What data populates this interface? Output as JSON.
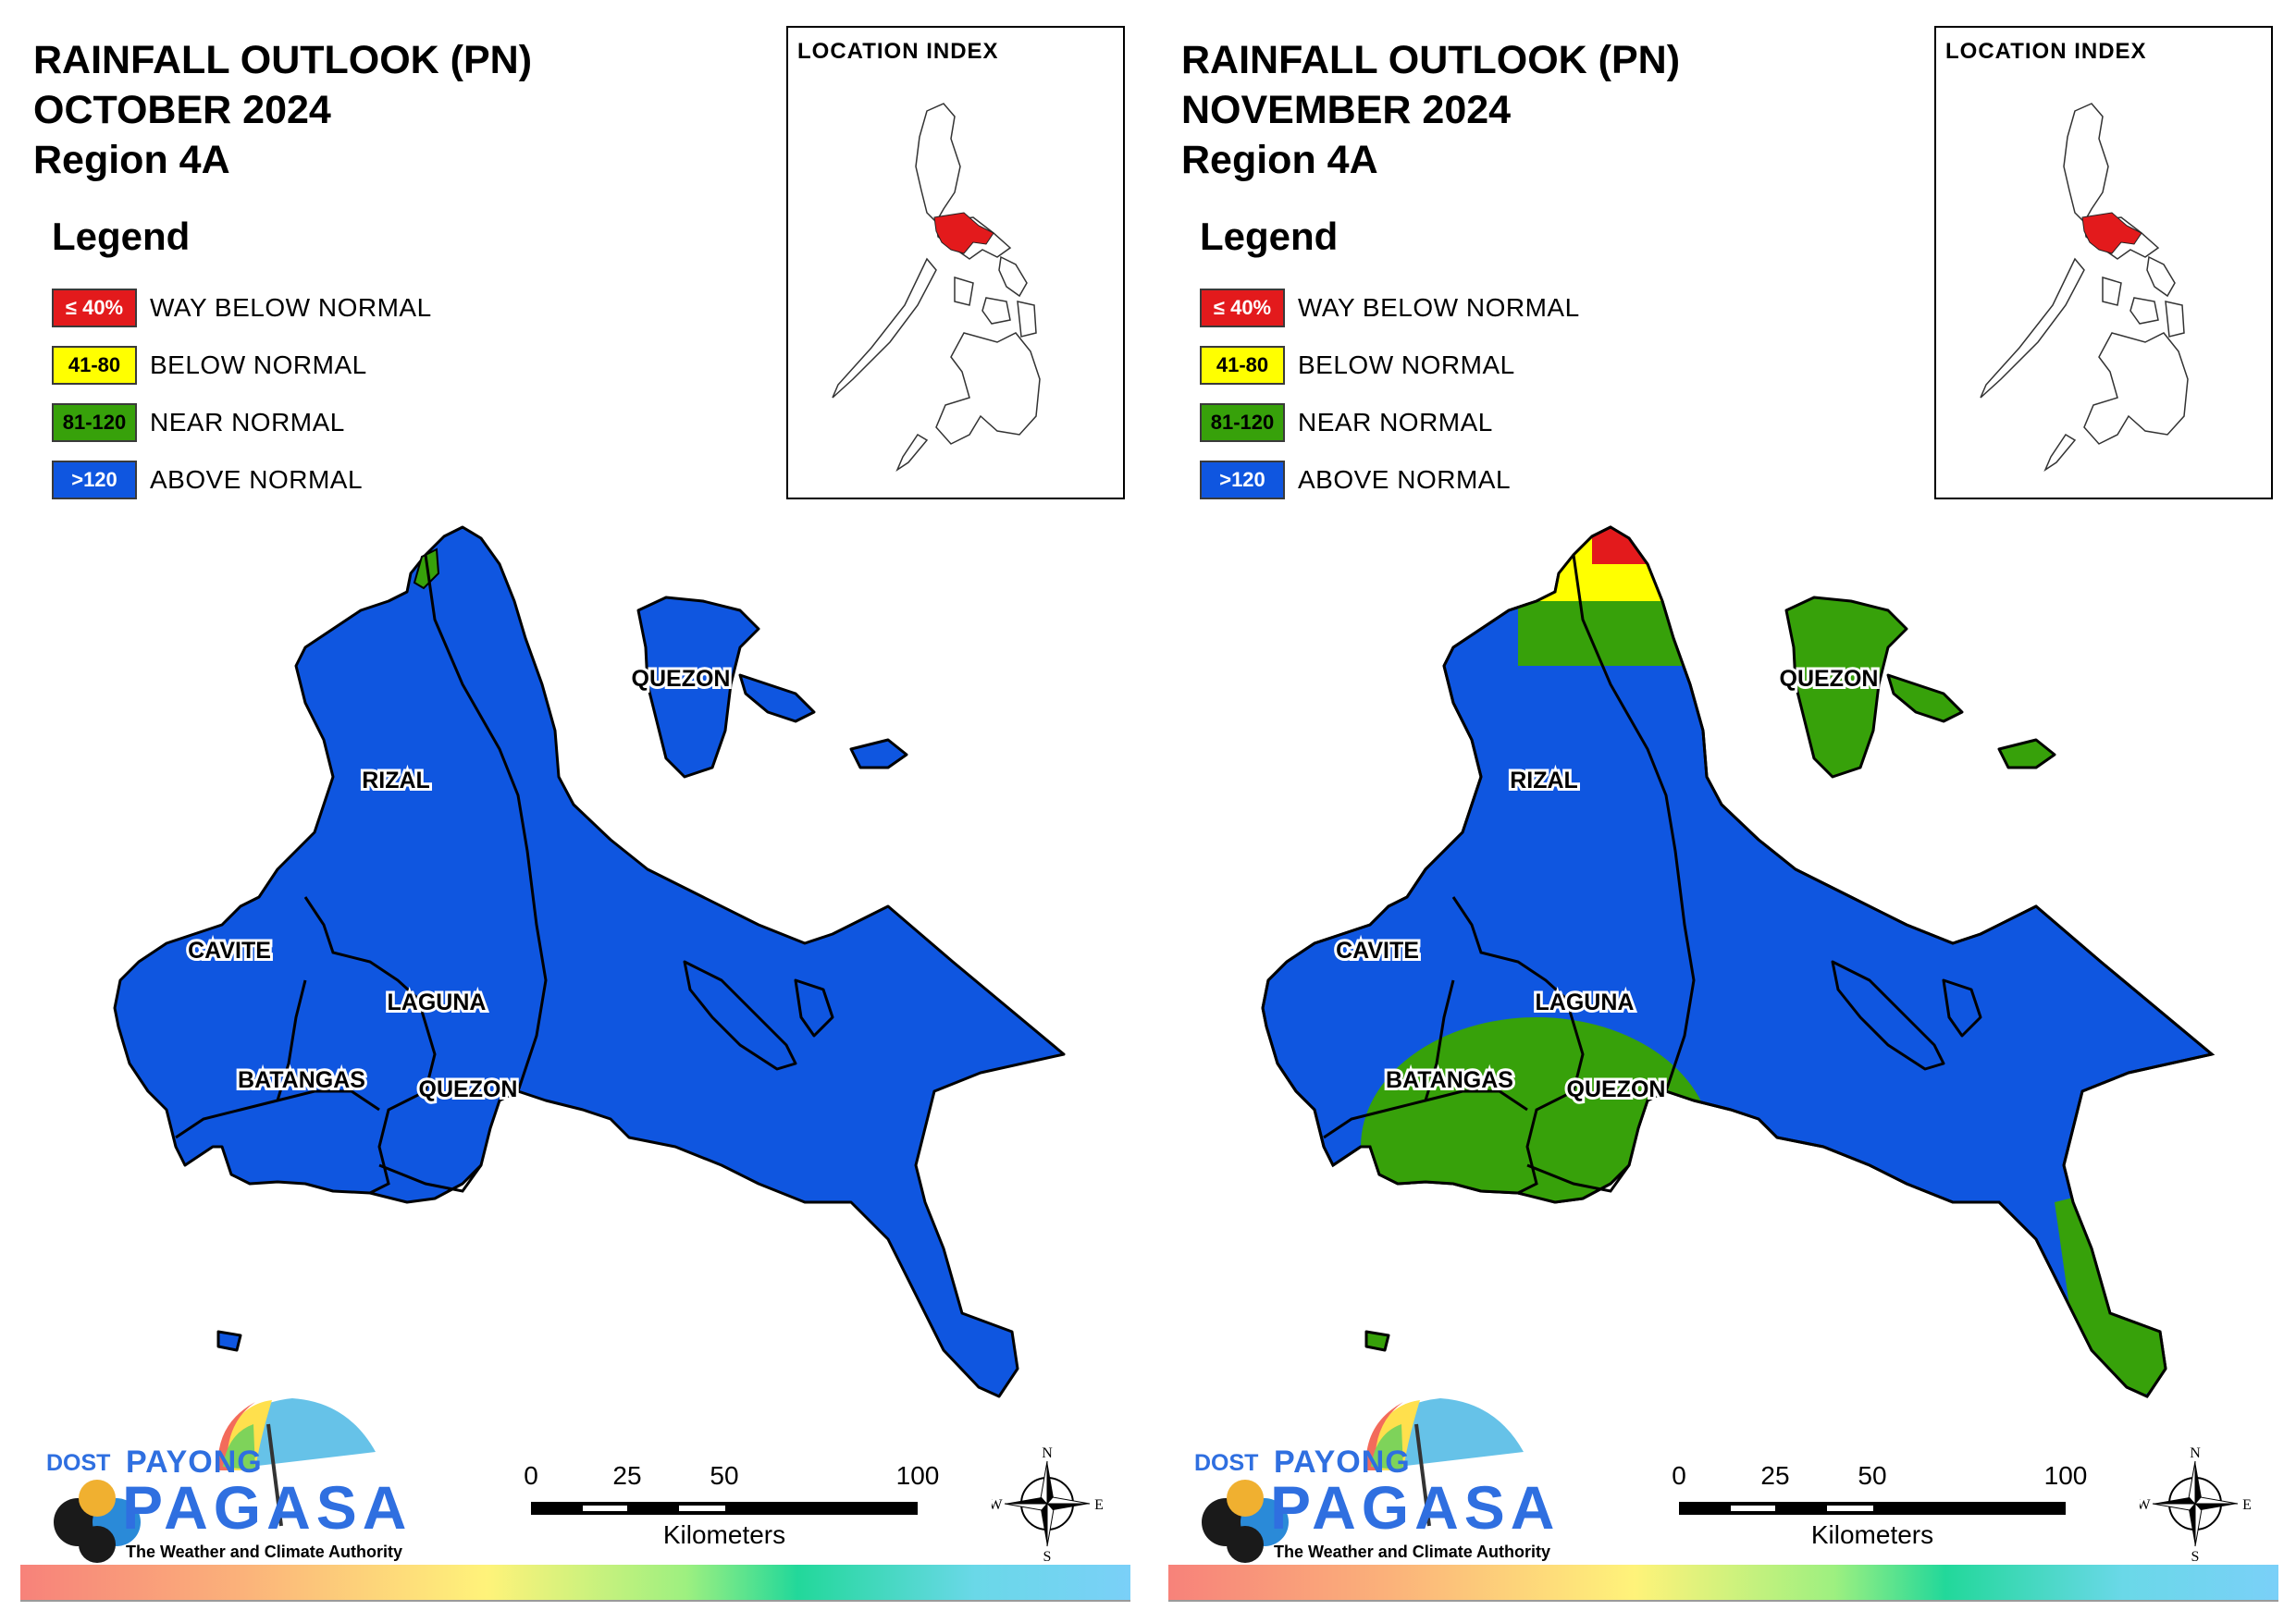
{
  "colors": {
    "way_below": "#e31a1c",
    "below": "#ffff00",
    "near": "#37a10a",
    "above": "#0f56e0",
    "border": "#000000"
  },
  "legend": {
    "heading": "Legend",
    "items": [
      {
        "range": "≤ 40%",
        "label": "WAY BELOW NORMAL",
        "color": "#e31a1c",
        "text_color": "#ffffff"
      },
      {
        "range": "41-80",
        "label": "BELOW NORMAL",
        "color": "#ffff00",
        "text_color": "#000000"
      },
      {
        "range": "81-120",
        "label": "NEAR NORMAL",
        "color": "#37a10a",
        "text_color": "#000000"
      },
      {
        "range": ">120",
        "label": "ABOVE NORMAL",
        "color": "#0f56e0",
        "text_color": "#ffffff"
      }
    ]
  },
  "location_index": {
    "title": "LOCATION INDEX"
  },
  "provinces": [
    "RIZAL",
    "CAVITE",
    "LAGUNA",
    "BATANGAS",
    "QUEZON",
    "QUEZON"
  ],
  "panels": [
    {
      "title": "RAINFALL OUTLOOK (PN)",
      "month": "OCTOBER 2024",
      "region": "Region 4A",
      "outlook": "above"
    },
    {
      "title": "RAINFALL OUTLOOK (PN)",
      "month": "NOVEMBER 2024",
      "region": "Region 4A",
      "outlook": "mixed"
    }
  ],
  "scale_bar": {
    "ticks": [
      "0",
      "25",
      "50",
      "100"
    ],
    "unit": "Kilometers"
  },
  "compass": {
    "n": "N",
    "s": "S",
    "e": "E",
    "w": "W"
  },
  "logo": {
    "dost": "DOST",
    "payong": "PAYONG",
    "pagasa": "PAGASA",
    "tagline": "The Weather and Climate Authority"
  }
}
